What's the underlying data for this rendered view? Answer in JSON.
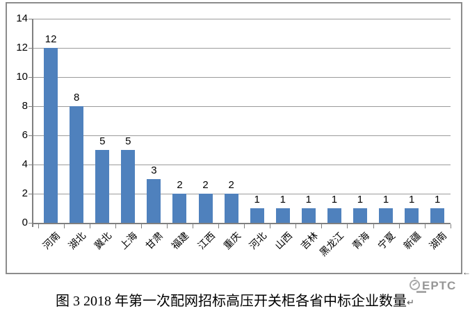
{
  "chart_data": {
    "type": "bar",
    "categories": [
      "河南",
      "湖北",
      "冀北",
      "上海",
      "甘肃",
      "福建",
      "江西",
      "重庆",
      "河北",
      "山西",
      "吉林",
      "黑龙江",
      "青海",
      "宁夏",
      "新疆",
      "湖南"
    ],
    "values": [
      12,
      8,
      5,
      5,
      3,
      2,
      2,
      2,
      1,
      1,
      1,
      1,
      1,
      1,
      1,
      1
    ],
    "title": "图 3 2018 年第一次配网招标高压开关柜各省中标企业数量",
    "xlabel": "",
    "ylabel": "",
    "ylim": [
      0,
      14
    ],
    "yticks": [
      0,
      2,
      4,
      6,
      8,
      10,
      12,
      14
    ],
    "grid": true,
    "legend_position": "none",
    "data_labels": true,
    "bar_color": "#4F81BD",
    "gridline_color": "#9B9B9B",
    "axis_color": "#7F7F7F"
  },
  "caption": {
    "text": "图 3 2018 年第一次配网招标高压开关柜各省中标企业数量",
    "paragraph_mark": "↵"
  },
  "watermark": {
    "text": "EPTC"
  },
  "anchor_arrow": "←"
}
